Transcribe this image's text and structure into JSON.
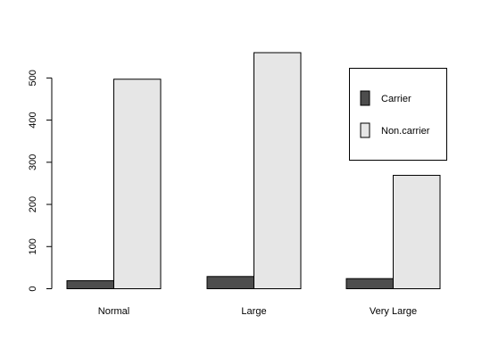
{
  "chart_data": {
    "type": "bar",
    "categories": [
      "Normal",
      "Large",
      "Very Large"
    ],
    "series": [
      {
        "name": "Carrier",
        "values": [
          19,
          29,
          24
        ],
        "color": "#4d4d4d"
      },
      {
        "name": "Non.carrier",
        "values": [
          497,
          560,
          269
        ],
        "color": "#e6e6e6"
      }
    ],
    "y_ticks": [
      "0",
      "100",
      "200",
      "300",
      "400",
      "500"
    ],
    "ylim": [
      0,
      560
    ],
    "grid": false,
    "legend_position": "top-right"
  }
}
